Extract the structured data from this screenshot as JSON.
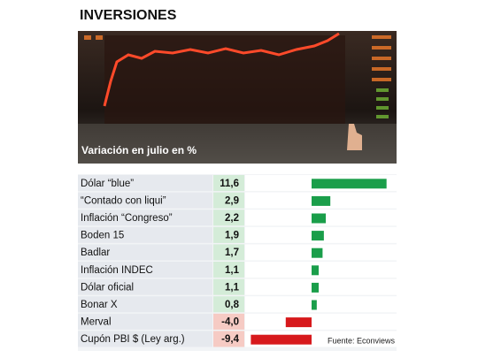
{
  "chart_data": {
    "type": "bar",
    "orientation": "horizontal",
    "title": "INVERSIONES",
    "subtitle": "Variación en julio en %",
    "source": "Fuente: Econviews",
    "categories": [
      "Dólar “blue”",
      "“Contado con liqui”",
      "Inflación “Congreso”",
      "Boden 15",
      "Badlar",
      "Inflación INDEC",
      "Dólar oficial",
      "Bonar X",
      "Merval",
      "Cupón PBI $ (Ley arg.)"
    ],
    "values": [
      11.6,
      2.9,
      2.2,
      1.9,
      1.7,
      1.1,
      1.1,
      0.8,
      -4.0,
      -9.4
    ],
    "value_labels": [
      "11,6",
      "2,9",
      "2,2",
      "1,9",
      "1,7",
      "1,1",
      "1,1",
      "0,8",
      "-4,0",
      "-9,4"
    ],
    "color": "#1a9e4a",
    "negative_color": "#d7191c"
  }
}
